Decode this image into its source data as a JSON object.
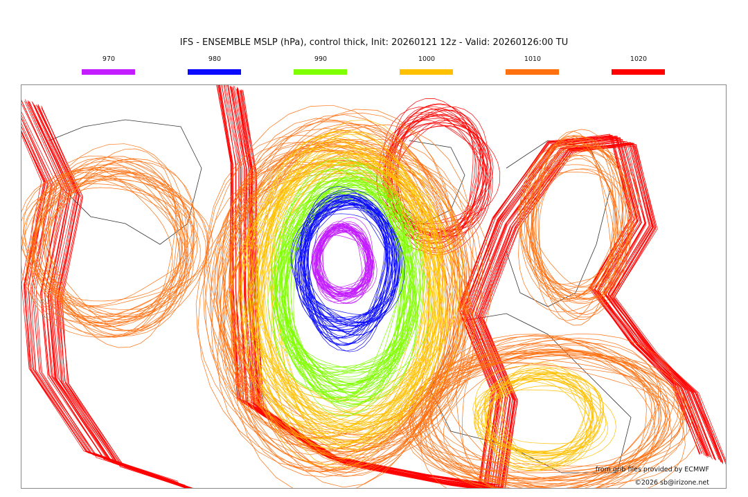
{
  "title": "IFS - ENSEMBLE MSLP (hPa), control thick, Init: 20260121 12z - Valid: 20260126:00 TU",
  "legend": [
    {
      "label": "970",
      "color": "#c21cff"
    },
    {
      "label": "980",
      "color": "#0a0aff"
    },
    {
      "label": "990",
      "color": "#80ff00"
    },
    {
      "label": "1000",
      "color": "#ffc000"
    },
    {
      "label": "1010",
      "color": "#ff7010"
    },
    {
      "label": "1020",
      "color": "#ff0000"
    }
  ],
  "credits": {
    "source": "from grib files provided by ECMWF",
    "copyright": "©2026 sb@irizone.net"
  }
}
